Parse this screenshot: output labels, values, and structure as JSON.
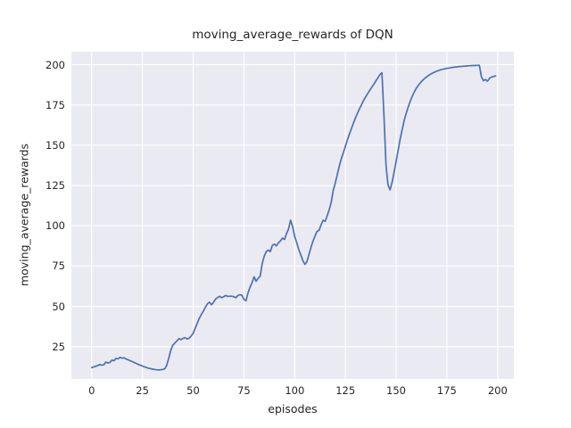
{
  "style": {
    "figure_bg": "#ffffff",
    "axes_bg": "#eaeaf2",
    "grid_color": "#ffffff",
    "line_color": "#4c72b0",
    "text_color": "#262626"
  },
  "chart_data": {
    "type": "line",
    "title": "moving_average_rewards of DQN",
    "xlabel": "episodes",
    "ylabel": "moving_average_rewards",
    "x_ticks": [
      0,
      25,
      50,
      75,
      100,
      125,
      150,
      175,
      200
    ],
    "y_ticks": [
      25,
      50,
      75,
      100,
      125,
      150,
      175,
      200
    ],
    "xlim": [
      -10,
      208
    ],
    "ylim": [
      5,
      208
    ],
    "grid": true,
    "legend_position": "none",
    "series": [
      {
        "name": "moving_average_rewards",
        "color": "#4c72b0",
        "x_start": 0,
        "x_step": 1,
        "values": [
          12.0,
          12.4,
          12.9,
          13.3,
          14.0,
          13.5,
          13.8,
          15.5,
          14.9,
          15.3,
          16.7,
          16.3,
          17.8,
          17.5,
          18.4,
          17.9,
          18.1,
          17.3,
          16.9,
          16.3,
          15.8,
          15.2,
          14.6,
          14.0,
          13.5,
          13.0,
          12.5,
          12.1,
          11.7,
          11.4,
          11.1,
          10.9,
          10.7,
          10.6,
          10.7,
          10.9,
          11.3,
          13.5,
          18.0,
          23.0,
          26.0,
          27.3,
          28.6,
          30.0,
          29.4,
          30.2,
          30.6,
          29.8,
          30.3,
          31.6,
          33.4,
          36.5,
          39.5,
          42.5,
          45.0,
          47.0,
          49.5,
          51.5,
          52.6,
          51.0,
          52.5,
          54.5,
          55.5,
          56.3,
          55.4,
          56.0,
          56.8,
          56.3,
          56.3,
          56.4,
          56.0,
          55.4,
          56.7,
          57.2,
          57.0,
          54.4,
          53.5,
          58.2,
          61.9,
          64.7,
          68.4,
          65.6,
          67.4,
          68.8,
          76.5,
          81.0,
          84.0,
          85.0,
          84.0,
          87.8,
          88.7,
          87.5,
          89.5,
          90.6,
          92.4,
          91.5,
          95.2,
          98.0,
          103.5,
          99.5,
          93.4,
          89.6,
          85.5,
          82.0,
          78.5,
          76.1,
          77.6,
          82.0,
          86.5,
          90.5,
          93.5,
          96.5,
          97.2,
          100.6,
          103.4,
          102.8,
          106.1,
          110.0,
          114.4,
          122.0,
          126.5,
          132.0,
          137.0,
          141.7,
          145.5,
          149.5,
          153.3,
          157.0,
          160.5,
          163.9,
          167.0,
          170.0,
          172.8,
          175.3,
          177.8,
          180.0,
          182.1,
          184.1,
          186.0,
          187.8,
          189.9,
          191.8,
          193.8,
          195.0,
          168.0,
          137.0,
          125.5,
          122.3,
          127.0,
          133.5,
          140.0,
          147.0,
          154.0,
          160.0,
          165.5,
          170.0,
          174.0,
          177.5,
          180.5,
          183.2,
          185.5,
          187.3,
          188.8,
          190.2,
          191.4,
          192.4,
          193.3,
          194.1,
          194.8,
          195.4,
          195.9,
          196.4,
          196.8,
          197.1,
          197.4,
          197.7,
          197.9,
          198.1,
          198.3,
          198.5,
          198.6,
          198.8,
          198.9,
          199.0,
          199.1,
          199.2,
          199.3,
          199.35,
          199.4,
          199.5,
          199.55,
          199.6,
          192.4,
          190.0,
          190.8,
          189.7,
          191.5,
          192.3,
          192.6,
          193.0
        ]
      }
    ]
  }
}
